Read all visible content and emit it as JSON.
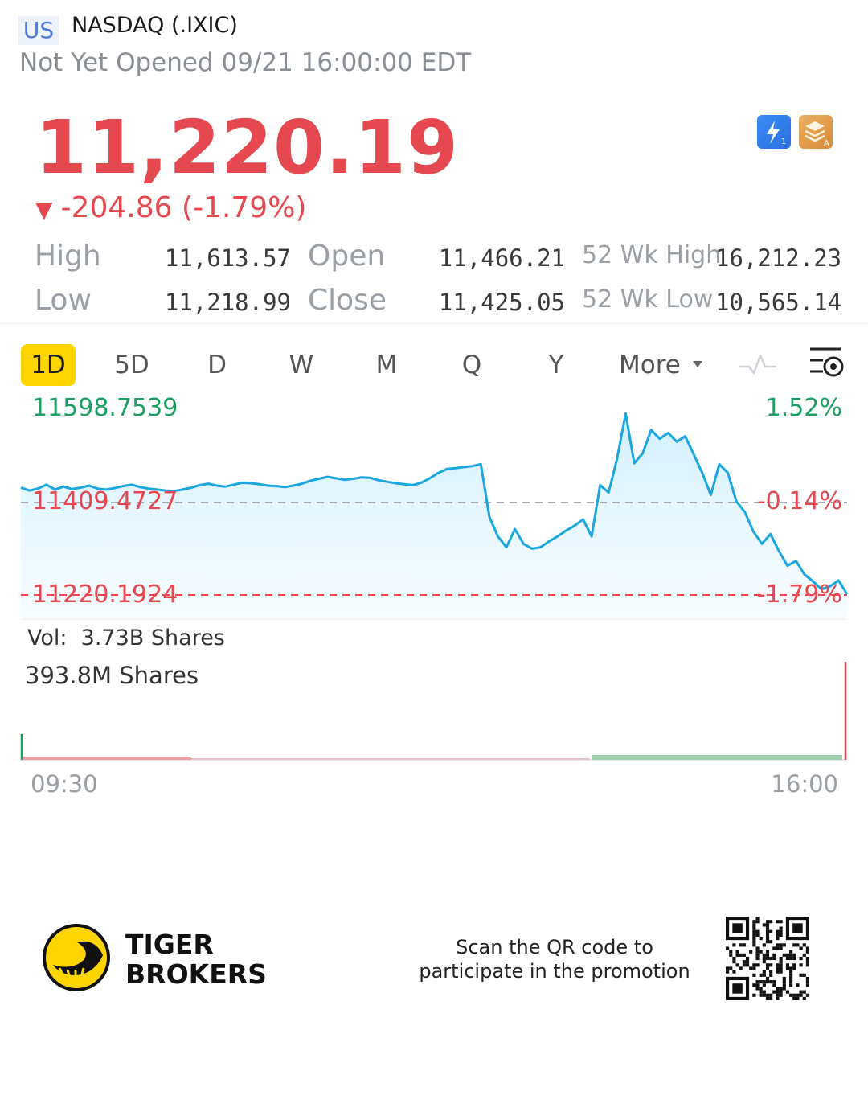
{
  "header": {
    "market": "US",
    "symbol": "NASDAQ (.IXIC)",
    "status": "Not Yet Opened 09/21 16:00:00 EDT"
  },
  "quote": {
    "price": "11,220.19",
    "change": "-204.86 (-1.79%)",
    "change_arrow": "▼",
    "color": "#e6484f"
  },
  "stats": {
    "high_label": "High",
    "high": "11,613.57",
    "low_label": "Low",
    "low": "11,218.99",
    "open_label": "Open",
    "open": "11,466.21",
    "close_label": "Close",
    "close": "11,425.05",
    "wk52_high_label": "52 Wk High",
    "wk52_high": "16,212.23",
    "wk52_low_label": "52 Wk Low",
    "wk52_low": "10,565.14"
  },
  "tabs": {
    "d1": "1D",
    "d5": "5D",
    "d": "D",
    "w": "W",
    "m": "M",
    "q": "Q",
    "y": "Y",
    "more": "More"
  },
  "icons": {
    "more": "triangle-down-icon",
    "indicator": "wave-icon",
    "settings": "chart-settings-icon",
    "bolt": "lightning-icon",
    "layers": "layers-icon"
  },
  "chart_data": {
    "type": "line",
    "x_start_label": "09:30",
    "x_end_label": "16:00",
    "y_max_label": "11598.7539",
    "y_ref_label": "11409.4727",
    "y_min_label": "11220.1924",
    "pct_max_label": "1.52%",
    "pct_ref_label": "-0.14%",
    "pct_min_label": "-1.79%",
    "ylim": [
      11220.1924,
      11598.7539
    ],
    "reference": 11409.4727,
    "line_color": "#1aa7e0",
    "values": [
      11440,
      11434,
      11438,
      11446,
      11436,
      11442,
      11437,
      11440,
      11444,
      11438,
      11436,
      11439,
      11443,
      11446,
      11441,
      11438,
      11436,
      11434,
      11433,
      11436,
      11440,
      11445,
      11448,
      11444,
      11442,
      11446,
      11450,
      11449,
      11447,
      11444,
      11443,
      11441,
      11444,
      11448,
      11454,
      11458,
      11462,
      11459,
      11456,
      11458,
      11461,
      11460,
      11455,
      11452,
      11449,
      11447,
      11445,
      11450,
      11459,
      11470,
      11478,
      11480,
      11482,
      11484,
      11488,
      11380,
      11340,
      11318,
      11355,
      11325,
      11315,
      11318,
      11330,
      11340,
      11352,
      11362,
      11375,
      11340,
      11445,
      11430,
      11500,
      11592,
      11490,
      11510,
      11558,
      11540,
      11552,
      11534,
      11545,
      11508,
      11470,
      11425,
      11488,
      11470,
      11412,
      11390,
      11350,
      11325,
      11345,
      11310,
      11280,
      11290,
      11262,
      11248,
      11232,
      11238,
      11250,
      11222
    ],
    "volume_label": "Vol:",
    "volume_total": "3.73B Shares",
    "volume_max_label": "393.8M Shares"
  },
  "footer": {
    "brand_line1": "TIGER",
    "brand_line2": "BROKERS",
    "promo_line1": "Scan the QR code to",
    "promo_line2": "participate in the promotion",
    "brand_color": "#ffd500"
  }
}
